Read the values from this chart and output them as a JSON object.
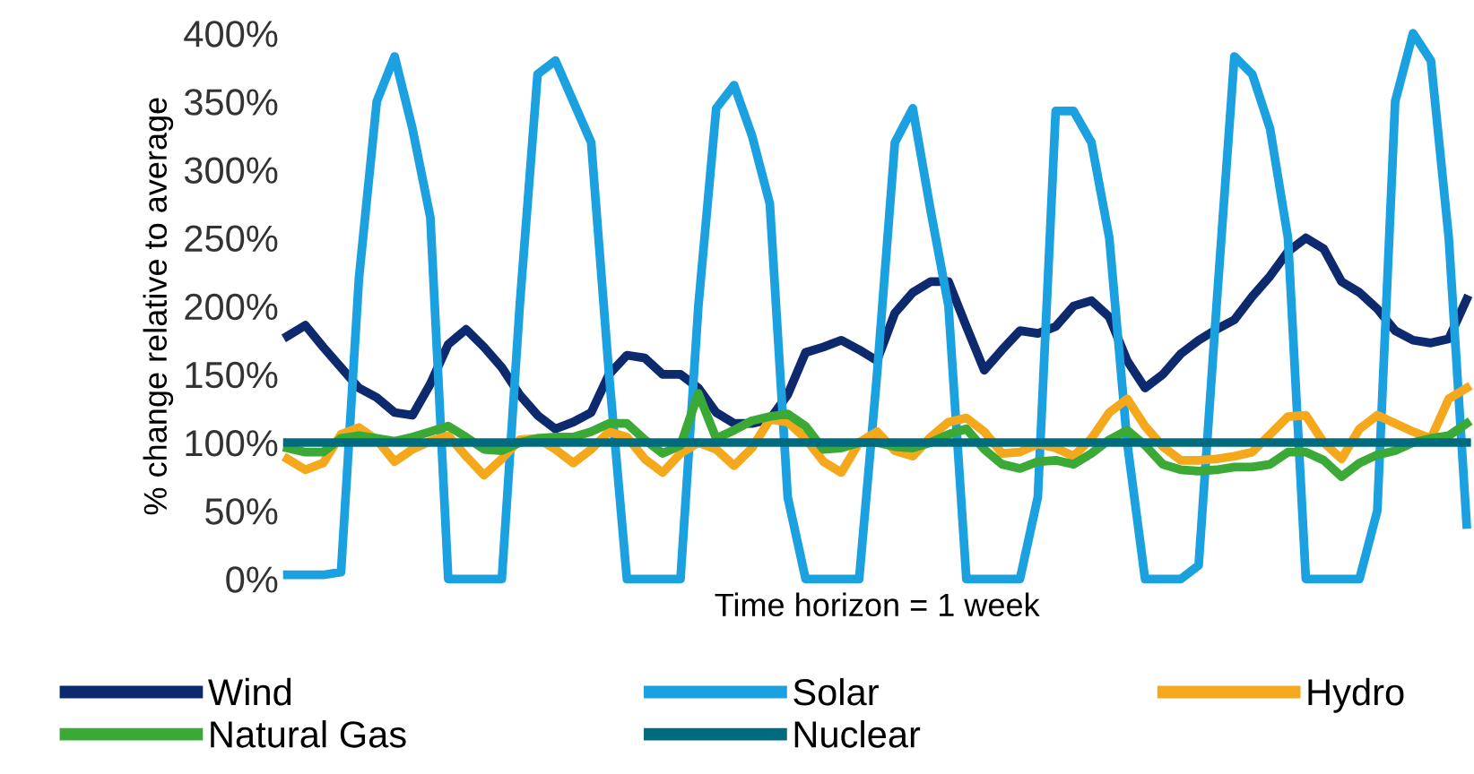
{
  "chart_data": {
    "type": "line",
    "xlabel": "Time horizon = 1 week",
    "ylabel": "% change relative to average",
    "categories": [
      null,
      null,
      null,
      null,
      null,
      null,
      null,
      null,
      null,
      null,
      null,
      null,
      null,
      null,
      null,
      null,
      null,
      null,
      null,
      null,
      null,
      null,
      null,
      null,
      null,
      null,
      null,
      null,
      null,
      null,
      null,
      null,
      null,
      null,
      null,
      null,
      null,
      null,
      null,
      null,
      null,
      null,
      null,
      null,
      null,
      null,
      null,
      null,
      null,
      null,
      null,
      null,
      null,
      null,
      null,
      null,
      null,
      null,
      null,
      null,
      null,
      null,
      null,
      null,
      null,
      null,
      null
    ],
    "ylim": [
      0,
      400
    ],
    "yticks": [
      {
        "value": 0,
        "label": "0%"
      },
      {
        "value": 50,
        "label": "50%"
      },
      {
        "value": 100,
        "label": "100%"
      },
      {
        "value": 150,
        "label": "150%"
      },
      {
        "value": 200,
        "label": "200%"
      },
      {
        "value": 250,
        "label": "250%"
      },
      {
        "value": 300,
        "label": "300%"
      },
      {
        "value": 350,
        "label": "350%"
      },
      {
        "value": 400,
        "label": "400%"
      }
    ],
    "grid": false,
    "legend": "bottom",
    "marker": "none",
    "line_style": "solid",
    "series": [
      {
        "name": "Wind",
        "color": "#0d2a6e",
        "values": [
          178,
          186,
          170,
          155,
          140,
          133,
          122,
          120,
          143,
          172,
          183,
          170,
          155,
          135,
          120,
          110,
          115,
          122,
          150,
          164,
          162,
          150,
          150,
          140,
          122,
          114,
          114,
          117,
          135,
          166,
          170,
          175,
          168,
          160,
          195,
          210,
          218,
          218,
          185,
          153,
          168,
          182,
          180,
          185,
          200,
          204,
          192,
          160,
          140,
          150,
          165,
          175,
          183,
          190,
          207,
          222,
          240,
          250,
          242,
          218,
          210,
          198,
          182,
          175,
          173,
          176,
          205
        ]
      },
      {
        "name": "Solar",
        "color": "#1ba0e0",
        "values": [
          3,
          3,
          3,
          5,
          220,
          350,
          383,
          330,
          265,
          0,
          0,
          0,
          0,
          200,
          370,
          380,
          350,
          320,
          150,
          0,
          0,
          0,
          0,
          200,
          345,
          362,
          325,
          275,
          60,
          0,
          0,
          0,
          0,
          150,
          320,
          345,
          270,
          200,
          0,
          0,
          0,
          0,
          60,
          343,
          343,
          320,
          250,
          100,
          0,
          0,
          0,
          10,
          200,
          383,
          370,
          330,
          250,
          0,
          0,
          0,
          0,
          50,
          350,
          400,
          380,
          250,
          40
        ]
      },
      {
        "name": "Hydro",
        "color": "#f5a81c",
        "values": [
          88,
          80,
          85,
          106,
          111,
          102,
          86,
          95,
          101,
          105,
          90,
          76,
          88,
          102,
          103,
          95,
          85,
          95,
          108,
          104,
          88,
          78,
          92,
          100,
          95,
          83,
          96,
          117,
          115,
          103,
          86,
          78,
          100,
          108,
          94,
          90,
          104,
          115,
          118,
          108,
          92,
          93,
          99,
          96,
          90,
          103,
          122,
          132,
          112,
          97,
          87,
          87,
          88,
          90,
          93,
          106,
          119,
          120,
          100,
          88,
          110,
          120,
          114,
          108,
          103,
          132,
          140
        ]
      },
      {
        "name": "Natural Gas",
        "color": "#3aa935",
        "values": [
          96,
          93,
          93,
          103,
          105,
          103,
          101,
          104,
          108,
          112,
          104,
          95,
          94,
          100,
          103,
          104,
          104,
          108,
          114,
          114,
          102,
          92,
          98,
          136,
          103,
          109,
          116,
          119,
          121,
          112,
          95,
          96,
          100,
          100,
          97,
          96,
          100,
          106,
          110,
          95,
          84,
          81,
          86,
          87,
          84,
          92,
          102,
          109,
          98,
          84,
          80,
          79,
          80,
          82,
          82,
          84,
          93,
          93,
          87,
          75,
          85,
          91,
          94,
          100,
          103,
          105,
          114
        ]
      },
      {
        "name": "Nuclear",
        "color": "#006b7f",
        "values": [
          100,
          100,
          100,
          100,
          100,
          100,
          100,
          100,
          100,
          100,
          100,
          100,
          100,
          100,
          100,
          100,
          100,
          100,
          100,
          100,
          100,
          100,
          100,
          100,
          100,
          100,
          100,
          100,
          100,
          100,
          100,
          100,
          100,
          100,
          100,
          100,
          100,
          100,
          100,
          100,
          100,
          100,
          100,
          100,
          100,
          100,
          100,
          100,
          100,
          100,
          100,
          100,
          100,
          100,
          100,
          100,
          100,
          100,
          100,
          100,
          100,
          100,
          100,
          100,
          100,
          100,
          100
        ]
      }
    ]
  }
}
